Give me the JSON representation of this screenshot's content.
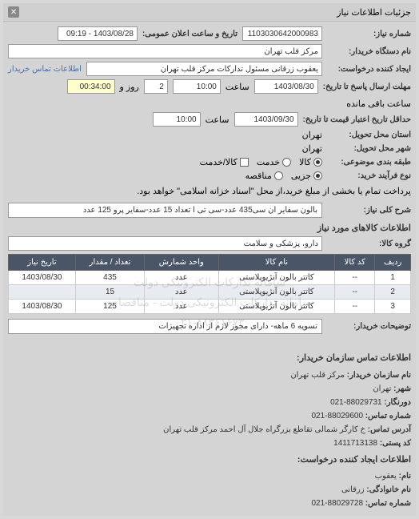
{
  "header": {
    "title": "جزئیات اطلاعات نیاز"
  },
  "fields": {
    "need_number_label": "شماره نیاز:",
    "need_number_value": "1103030642000983",
    "announce_date_label": "تاریخ و ساعت اعلان عمومی:",
    "announce_date_value": "1403/08/28 - 09:19",
    "buyer_name_label": "نام دستگاه خریدار:",
    "buyer_name_value": "مرکز قلب تهران",
    "creator_label": "ایجاد کننده درخواست:",
    "creator_value": "یعقوب زرقانی مسئول تدارکات مرکز قلب تهران",
    "contact_link": "اطلاعات تماس خریدار",
    "deadline_label": "مهلت ارسال پاسخ تا تاریخ:",
    "deadline_date": "1403/08/30",
    "time_label": "ساعت",
    "deadline_time": "10:00",
    "day_and": "و",
    "days_value": "2",
    "day_remain": "روز و",
    "time_remain": "00:34:00",
    "remain_label": "ساعت باقی مانده",
    "validity_label": "حداقل تاریخ اعتبار قیمت تا تاریخ:",
    "validity_date": "1403/09/30",
    "validity_time": "10:00",
    "province_label": "استان محل تحویل:",
    "province_value": "تهران",
    "city_label": "شهر محل تحویل:",
    "city_value": "تهران",
    "subject_type_label": "طبقه بندی موضوعی:",
    "process_type_label": "نوع فرآیند خرید:",
    "process_note": "پرداخت تمام یا بخشی از مبلغ خرید،از محل \"اسناد خزانه اسلامی\" خواهد بود."
  },
  "radios": {
    "subject": [
      {
        "label": "کالا",
        "checked": true
      },
      {
        "label": "خدمت",
        "checked": false
      },
      {
        "label": "کالا/خدمت",
        "checked": false
      }
    ],
    "process": [
      {
        "label": "جزیی",
        "checked": true
      },
      {
        "label": "مناقصه",
        "checked": false
      }
    ]
  },
  "need_title_label": "شرح کلی نیاز:",
  "need_title_value": "بالون سفایر ان سی435 عدد-سی تی ا تعداد 15 عدد-سفایر پرو 125 عدد",
  "goods_section_title": "اطلاعات کالاهای مورد نیاز",
  "goods_group_label": "گروه کالا:",
  "goods_group_value": "دارو، پزشکی و سلامت",
  "table": {
    "headers": [
      "ردیف",
      "کد کالا",
      "نام کالا",
      "واحد شمارش",
      "تعداد / مقدار",
      "تاریخ نیاز"
    ],
    "rows": [
      [
        "1",
        "--",
        "کاتتر بالون آنژیوپلاستی",
        "عدد",
        "435",
        "1403/08/30"
      ],
      [
        "2",
        "--",
        "کاتتر بالون آنژیوپلاستی",
        "عدد",
        "15",
        ""
      ],
      [
        "3",
        "--",
        "کاتتر بالون آنژیوپلاستی",
        "عدد",
        "125",
        "1403/08/30"
      ]
    ]
  },
  "watermark": {
    "line1": "سامانه تدارکات الکترونیکی دولت",
    "line2": "سامانه تدارکات الکترونیکی دولت - مناقصات",
    "line3": "۰۲۱-۸۸۳۶۱۶۷۳"
  },
  "buyer_notes_label": "توضیحات خریدار:",
  "buyer_notes_value": "تسویه 6 ماهه- دارای مجوز لازم از اداره تجهیزات",
  "contact": {
    "title": "اطلاعات تماس سازمان خریدار:",
    "org_label": "نام سازمان خریدار:",
    "org_value": "مرکز قلب تهران",
    "city_label": "شهر:",
    "city_value": "تهران",
    "fax_label": "دورنگار:",
    "fax_value": "88029731-021",
    "phone_label": "شماره تماس:",
    "phone_value": "88029600-021",
    "address_label": "آدرس تماس:",
    "address_value": "خ کارگر شمالی تقاطع بزرگراه جلال آل احمد مرکز قلب تهران",
    "postal_label": "کد پستی:",
    "postal_value": "1411713138",
    "creator_title": "اطلاعات ایجاد کننده درخواست:",
    "name_label": "نام:",
    "name_value": "یعقوب",
    "family_label": "نام خانوادگی:",
    "family_value": "زرقانی",
    "creator_phone_label": "شماره تماس:",
    "creator_phone_value": "88029728-021"
  }
}
